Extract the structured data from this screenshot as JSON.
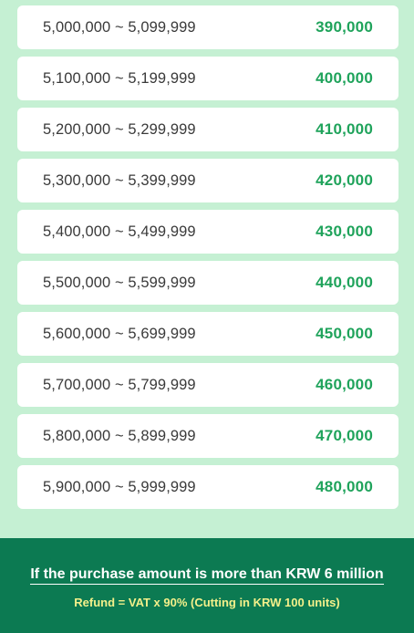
{
  "rows": [
    {
      "range": "5,000,000 ~ 5,099,999",
      "refund": "390,000"
    },
    {
      "range": "5,100,000 ~ 5,199,999",
      "refund": "400,000"
    },
    {
      "range": "5,200,000 ~ 5,299,999",
      "refund": "410,000"
    },
    {
      "range": "5,300,000 ~ 5,399,999",
      "refund": "420,000"
    },
    {
      "range": "5,400,000 ~ 5,499,999",
      "refund": "430,000"
    },
    {
      "range": "5,500,000 ~ 5,599,999",
      "refund": "440,000"
    },
    {
      "range": "5,600,000 ~ 5,699,999",
      "refund": "450,000"
    },
    {
      "range": "5,700,000 ~ 5,799,999",
      "refund": "460,000"
    },
    {
      "range": "5,800,000 ~ 5,899,999",
      "refund": "470,000"
    },
    {
      "range": "5,900,000 ~ 5,999,999",
      "refund": "480,000"
    }
  ],
  "footer": {
    "title": "If the purchase amount is more than KRW 6 million",
    "formula": "Refund = VAT x 90% (Cutting in KRW 100 units)"
  },
  "colors": {
    "page_background": "#c5f0d3",
    "row_background": "#ffffff",
    "refund_text": "#1fa35b",
    "footer_background": "#0c7a52",
    "footer_formula_text": "#f4f08a"
  }
}
